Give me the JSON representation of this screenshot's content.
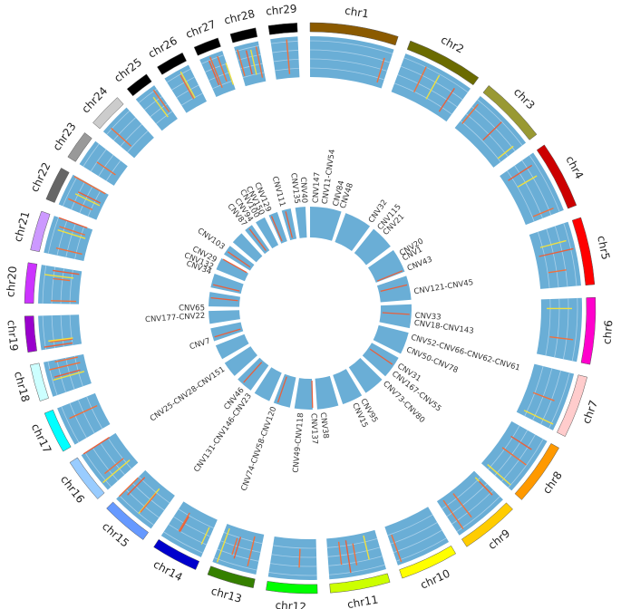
{
  "chromosomes": [
    {
      "label": "chr1",
      "color": "#8b5a00"
    },
    {
      "label": "chr2",
      "color": "#6b6b00"
    },
    {
      "label": "chr3",
      "color": "#999933"
    },
    {
      "label": "chr4",
      "color": "#cc0000"
    },
    {
      "label": "chr5",
      "color": "#ff0000"
    },
    {
      "label": "chr6",
      "color": "#ff00cc"
    },
    {
      "label": "chr7",
      "color": "#ffcccc"
    },
    {
      "label": "chr8",
      "color": "#ff9900"
    },
    {
      "label": "chr9",
      "color": "#ffcc00"
    },
    {
      "label": "chr10",
      "color": "#ffff00"
    },
    {
      "label": "chr11",
      "color": "#ccff00"
    },
    {
      "label": "chr12",
      "color": "#00ff00"
    },
    {
      "label": "chr13",
      "color": "#358000"
    },
    {
      "label": "chr14",
      "color": "#0000cc"
    },
    {
      "label": "chr15",
      "color": "#6699ff"
    },
    {
      "label": "chr16",
      "color": "#99ccff"
    },
    {
      "label": "chr17",
      "color": "#00ffff"
    },
    {
      "label": "chr18",
      "color": "#ccffff"
    },
    {
      "label": "chr19",
      "color": "#9900cc"
    },
    {
      "label": "chr20",
      "color": "#cc33ff"
    },
    {
      "label": "chr21",
      "color": "#cc99ff"
    },
    {
      "label": "chr22",
      "color": "#666666"
    },
    {
      "label": "chr23",
      "color": "#999999"
    },
    {
      "label": "chr24",
      "color": "#cccccc"
    },
    {
      "label": "chr25",
      "color": "#000000"
    },
    {
      "label": "chr26",
      "color": "#000000"
    },
    {
      "label": "chr27",
      "color": "#000000"
    },
    {
      "label": "chr28",
      "color": "#000000"
    },
    {
      "label": "chr29",
      "color": "#000000"
    }
  ],
  "cnv_labels": [
    "CNV147",
    "CNV11-CNV54",
    "CNV84",
    "CNV48",
    "CNV32",
    "CNV115",
    "CNV21",
    "CNV20",
    "CNV1",
    "CNV43",
    "CNV121-CNV45",
    "CNV33",
    "CNV18-CNV143",
    "CNV52-CNV66-CNV62-CNV61",
    "CNV50-CNV78",
    "CNV31",
    "CNV167-CNV55",
    "CNV73-CNV80",
    "CNV95",
    "CNV15",
    "CNV38",
    "CNV137",
    "CNV49-CNV118",
    "CNV74-CNV58-CNV120",
    "CNV131-CNV146-CNV23",
    "CNV46",
    "CNV25-CNV28-CNV151",
    "CNV7",
    "CNV177-CNV22",
    "CNV65",
    "CNV34",
    "CNV132",
    "CNV29",
    "CNV103",
    "CNV87",
    "CNV94",
    "CNV100",
    "CNV150",
    "CNV129",
    "CNV111",
    "CNV135",
    "CNV40"
  ]
}
